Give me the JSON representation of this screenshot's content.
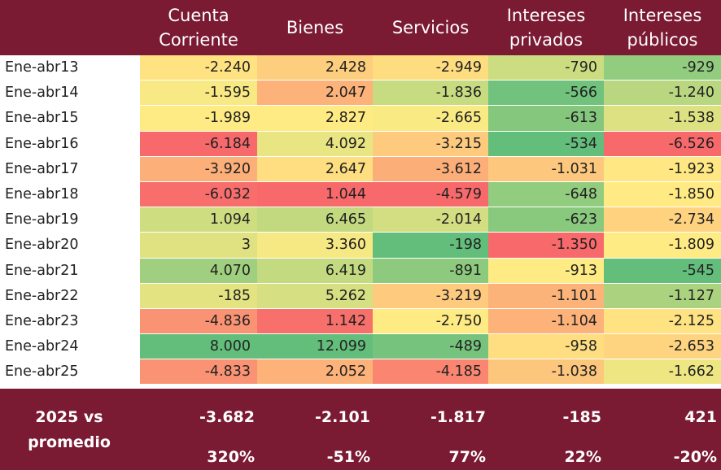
{
  "columns": [
    "Cuenta Corriente",
    "Bienes",
    "Servicios",
    "Intereses privados",
    "Intereses públicos"
  ],
  "header_lines": [
    [
      "Cuenta",
      "Corriente"
    ],
    [
      "Bienes"
    ],
    [
      "Servicios"
    ],
    [
      "Intereses",
      "privados"
    ],
    [
      "Intereses",
      "públicos"
    ]
  ],
  "rows": [
    {
      "label": "Ene-abr13",
      "display": [
        "-2.240",
        "2.428",
        "-2.949",
        "-790",
        "-929"
      ],
      "values": [
        -2240,
        2428,
        -2949,
        -790,
        -929
      ]
    },
    {
      "label": "Ene-abr14",
      "display": [
        "-1.595",
        "2.047",
        "-1.836",
        "-566",
        "-1.240"
      ],
      "values": [
        -1595,
        2047,
        -1836,
        -566,
        -1240
      ]
    },
    {
      "label": "Ene-abr15",
      "display": [
        "-1.989",
        "2.827",
        "-2.665",
        "-613",
        "-1.538"
      ],
      "values": [
        -1989,
        2827,
        -2665,
        -613,
        -1538
      ]
    },
    {
      "label": "Ene-abr16",
      "display": [
        "-6.184",
        "4.092",
        "-3.215",
        "-534",
        "-6.526"
      ],
      "values": [
        -6184,
        4092,
        -3215,
        -534,
        -6526
      ]
    },
    {
      "label": "Ene-abr17",
      "display": [
        "-3.920",
        "2.647",
        "-3.612",
        "-1.031",
        "-1.923"
      ],
      "values": [
        -3920,
        2647,
        -3612,
        -1031,
        -1923
      ]
    },
    {
      "label": "Ene-abr18",
      "display": [
        "-6.032",
        "1.044",
        "-4.579",
        "-648",
        "-1.850"
      ],
      "values": [
        -6032,
        1044,
        -4579,
        -648,
        -1850
      ]
    },
    {
      "label": "Ene-abr19",
      "display": [
        "1.094",
        "6.465",
        "-2.014",
        "-623",
        "-2.734"
      ],
      "values": [
        1094,
        6465,
        -2014,
        -623,
        -2734
      ]
    },
    {
      "label": "Ene-abr20",
      "display": [
        "3",
        "3.360",
        "-198",
        "-1.350",
        "-1.809"
      ],
      "values": [
        3,
        3360,
        -198,
        -1350,
        -1809
      ]
    },
    {
      "label": "Ene-abr21",
      "display": [
        "4.070",
        "6.419",
        "-891",
        "-913",
        "-545"
      ],
      "values": [
        4070,
        6419,
        -891,
        -913,
        -545
      ]
    },
    {
      "label": "Ene-abr22",
      "display": [
        "-185",
        "5.262",
        "-3.219",
        "-1.101",
        "-1.127"
      ],
      "values": [
        -185,
        5262,
        -3219,
        -1101,
        -1127
      ]
    },
    {
      "label": "Ene-abr23",
      "display": [
        "-4.836",
        "1.142",
        "-2.750",
        "-1.104",
        "-2.125"
      ],
      "values": [
        -4836,
        1142,
        -2750,
        -1104,
        -2125
      ]
    },
    {
      "label": "Ene-abr24",
      "display": [
        "8.000",
        "12.099",
        "-489",
        "-958",
        "-2.653"
      ],
      "values": [
        8000,
        12099,
        -489,
        -958,
        -2653
      ]
    },
    {
      "label": "Ene-abr25",
      "display": [
        "-4.833",
        "2.052",
        "-4.185",
        "-1.038",
        "-1.662"
      ],
      "values": [
        -4833,
        2052,
        -4185,
        -1038,
        -1662
      ]
    }
  ],
  "summary": {
    "label": "2025 vs promedio",
    "label_lines": [
      "2025 vs",
      "promedio"
    ],
    "diff": [
      "-3.682",
      "-2.101",
      "-1.817",
      "-185",
      "421"
    ],
    "pct": [
      "320%",
      "-51%",
      "77%",
      "22%",
      "-20%"
    ]
  },
  "colors": {
    "header_bg": "#7a1a33",
    "header_text": "#ffffff",
    "scale_low": "#f8696b",
    "scale_mid": "#ffeb84",
    "scale_high": "#63be7b"
  }
}
